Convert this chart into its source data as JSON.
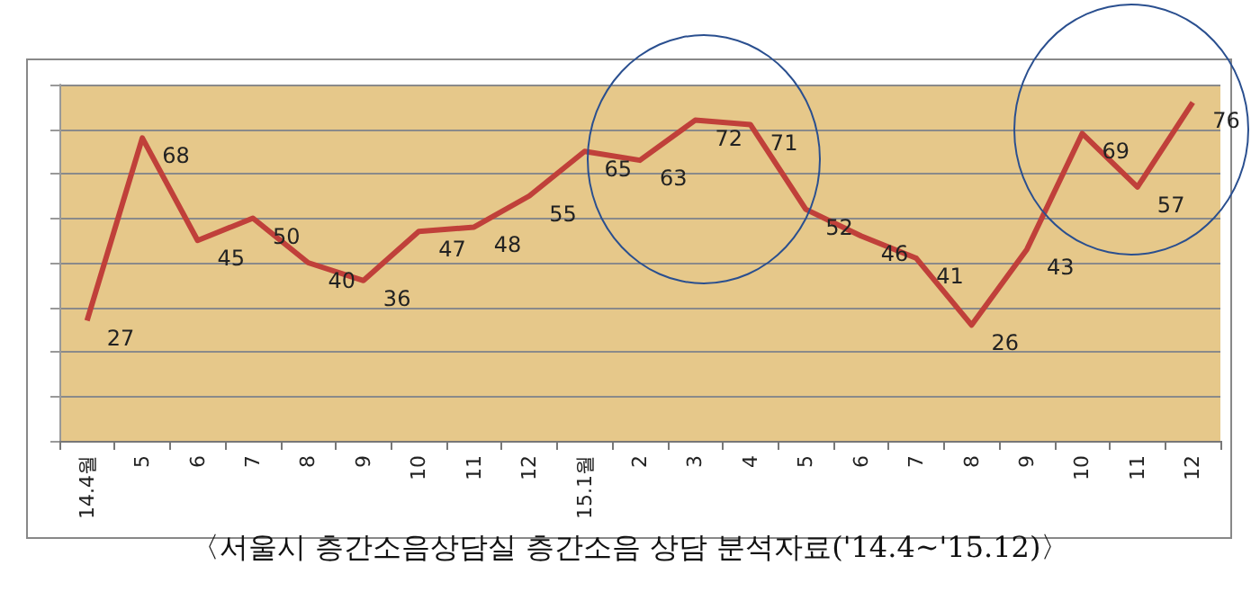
{
  "chart_data": {
    "type": "line",
    "categories": [
      "14.4월",
      "5",
      "6",
      "7",
      "8",
      "9",
      "10",
      "11",
      "12",
      "15.1월",
      "2",
      "3",
      "4",
      "5",
      "6",
      "7",
      "8",
      "9",
      "10",
      "11",
      "12"
    ],
    "series": [
      {
        "color": "#c0403a",
        "values": [
          27,
          68,
          45,
          50,
          40,
          36,
          47,
          48,
          55,
          65,
          63,
          72,
          71,
          52,
          46,
          41,
          26,
          43,
          69,
          57,
          76
        ]
      }
    ],
    "ylim": [
      0,
      80
    ],
    "yticks": [
      {
        "value": 0,
        "label": null
      },
      {
        "value": 10,
        "label": null
      },
      {
        "value": 20,
        "label": null
      },
      {
        "value": 30,
        "label": null
      },
      {
        "value": 40,
        "label": null
      },
      {
        "value": 50,
        "label": null
      },
      {
        "value": 60,
        "label": null
      },
      {
        "value": 70,
        "label": null
      },
      {
        "value": 80,
        "label": null
      }
    ],
    "tick_labels": "x",
    "grid": "y",
    "data_labels": true,
    "marker": "none",
    "line_style": "solid",
    "annotations": [
      "〈서울시 층간소음상담실 층간소음 상담 분석자료('14.4~'15.12)〉"
    ]
  }
}
